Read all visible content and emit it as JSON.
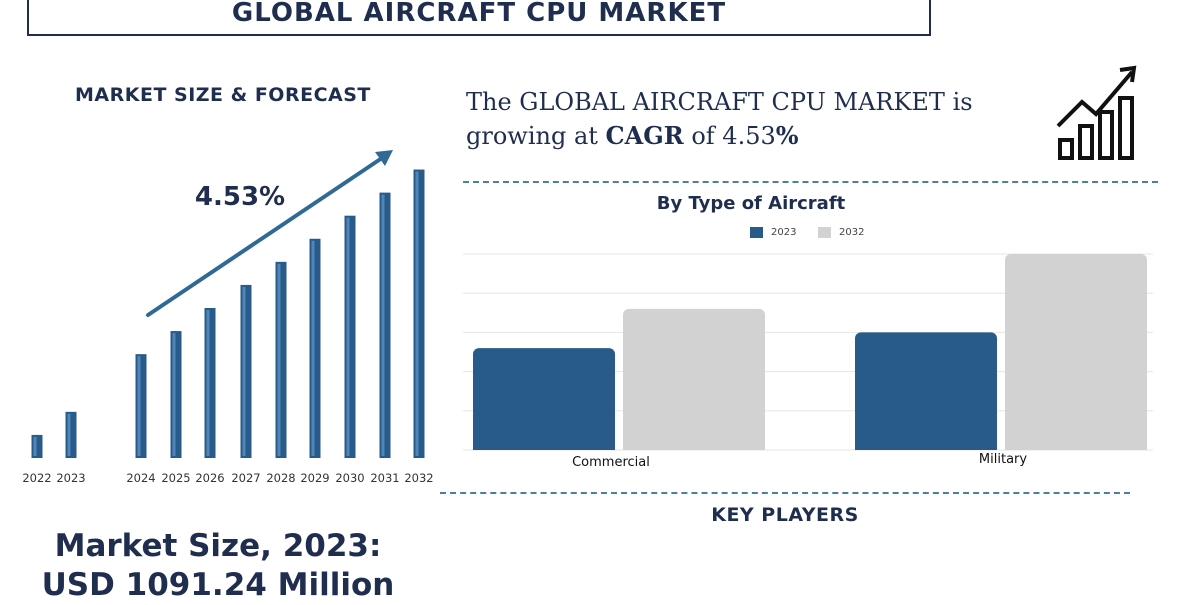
{
  "header": {
    "title": "GLOBAL AIRCRAFT CPU MARKET"
  },
  "left_panel": {
    "heading": "MARKET SIZE & FORECAST",
    "market_size_line1": "Market Size, 2023:",
    "market_size_line2": "USD 1091.24 Million"
  },
  "headline": {
    "prefix": "The GLOBAL AIRCRAFT CPU MARKET is",
    "growing_text": "growing at ",
    "cagr_label": "CAGR",
    "of_text": " of 4.53",
    "percent_sign": "%"
  },
  "key_players": {
    "heading": "KEY PLAYERS"
  },
  "colors": {
    "navy": "#1f2d4f",
    "bar_blue": "#285a8a",
    "light_gray": "#d2d2d2",
    "accent_line": "#2f6a95"
  },
  "icons": [
    "growth-bar-chart-icon",
    "trend-arrow-icon"
  ],
  "chart_data": [
    {
      "type": "bar",
      "title": "MARKET SIZE & FORECAST",
      "categories": [
        "2022",
        "2023",
        "2024",
        "2025",
        "2026",
        "2027",
        "2028",
        "2029",
        "2030",
        "2031",
        "2032"
      ],
      "values": [
        1,
        2,
        4.5,
        5.5,
        6.5,
        7.5,
        8.5,
        9.5,
        10.5,
        11.5,
        12.5
      ],
      "annotation": "4.53%",
      "ylim": [
        0,
        13
      ]
    },
    {
      "type": "bar",
      "title": "By Type of Aircraft",
      "categories": [
        "Commercial",
        "Military"
      ],
      "series": [
        {
          "name": "2023",
          "values": [
            2.6,
            3.0
          ]
        },
        {
          "name": "2032",
          "values": [
            3.6,
            5.0
          ]
        }
      ],
      "ylim": [
        0,
        5
      ]
    }
  ]
}
